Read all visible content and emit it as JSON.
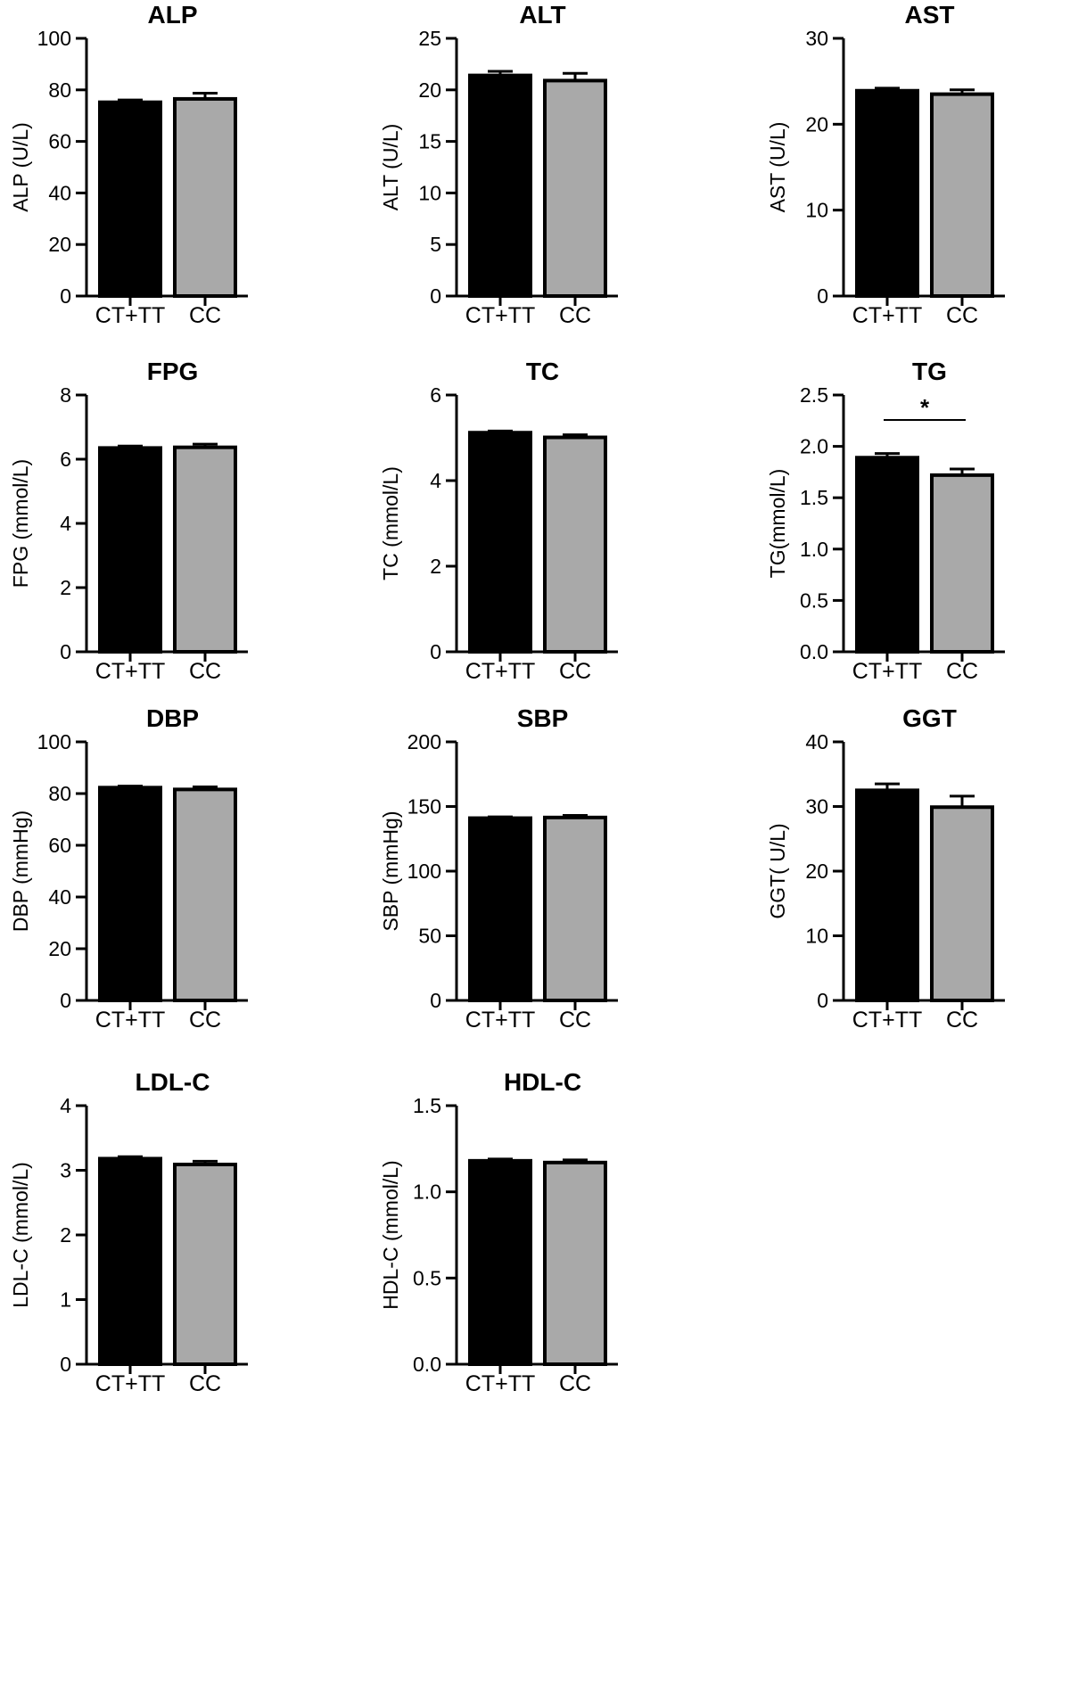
{
  "chart_data": [
    {
      "type": "bar",
      "title": "ALP",
      "ylabel": "ALP (U/L)",
      "categories": [
        "CT+TT",
        "CC"
      ],
      "values": [
        75.2,
        76.5
      ],
      "errors": [
        0.9,
        2.2
      ],
      "ylim": [
        0,
        100
      ],
      "ticks": [
        "0",
        "20",
        "40",
        "60",
        "80",
        "100"
      ],
      "colors": [
        "#000000",
        "#a9a9a9"
      ]
    },
    {
      "type": "bar",
      "title": "ALT",
      "ylabel": "ALT (U/L)",
      "categories": [
        "CT+TT",
        "CC"
      ],
      "values": [
        21.4,
        20.9
      ],
      "errors": [
        0.4,
        0.7
      ],
      "ylim": [
        0,
        25
      ],
      "ticks": [
        "0",
        "5",
        "10",
        "15",
        "20",
        "25"
      ],
      "colors": [
        "#000000",
        "#a9a9a9"
      ]
    },
    {
      "type": "bar",
      "title": "AST",
      "ylabel": "AST (U/L)",
      "categories": [
        "CT+TT",
        "CC"
      ],
      "values": [
        23.9,
        23.5
      ],
      "errors": [
        0.3,
        0.5
      ],
      "ylim": [
        0,
        30
      ],
      "ticks": [
        "0",
        "10",
        "20",
        "30"
      ],
      "colors": [
        "#000000",
        "#a9a9a9"
      ]
    },
    {
      "type": "bar",
      "title": "FPG",
      "ylabel": "FPG (mmol/L)",
      "categories": [
        "CT+TT",
        "CC"
      ],
      "values": [
        6.35,
        6.37
      ],
      "errors": [
        0.06,
        0.1
      ],
      "ylim": [
        0,
        8
      ],
      "ticks": [
        "0",
        "2",
        "4",
        "6",
        "8"
      ],
      "colors": [
        "#000000",
        "#a9a9a9"
      ]
    },
    {
      "type": "bar",
      "title": "TC",
      "ylabel": "TC (mmol/L)",
      "categories": [
        "CT+TT",
        "CC"
      ],
      "values": [
        5.12,
        5.01
      ],
      "errors": [
        0.04,
        0.06
      ],
      "ylim": [
        0,
        6
      ],
      "ticks": [
        "0",
        "2",
        "4",
        "6"
      ],
      "colors": [
        "#000000",
        "#a9a9a9"
      ]
    },
    {
      "type": "bar",
      "title": "TG",
      "ylabel": "TG(mmol/L)",
      "categories": [
        "CT+TT",
        "CC"
      ],
      "values": [
        1.89,
        1.72
      ],
      "errors": [
        0.04,
        0.06
      ],
      "ylim": [
        0,
        2.5
      ],
      "ticks": [
        "0.0",
        "0.5",
        "1.0",
        "1.5",
        "2.0",
        "2.5"
      ],
      "colors": [
        "#000000",
        "#a9a9a9"
      ],
      "significance": "*"
    },
    {
      "type": "bar",
      "title": "DBP",
      "ylabel": "DBP (mmHg)",
      "categories": [
        "CT+TT",
        "CC"
      ],
      "values": [
        82.3,
        81.6
      ],
      "errors": [
        0.6,
        1.0
      ],
      "ylim": [
        0,
        100
      ],
      "ticks": [
        "0",
        "20",
        "40",
        "60",
        "80",
        "100"
      ],
      "colors": [
        "#000000",
        "#a9a9a9"
      ]
    },
    {
      "type": "bar",
      "title": "SBP",
      "ylabel": "SBP (mmHg)",
      "categories": [
        "CT+TT",
        "CC"
      ],
      "values": [
        141,
        141.5
      ],
      "errors": [
        1.0,
        1.6
      ],
      "ylim": [
        0,
        200
      ],
      "ticks": [
        "0",
        "50",
        "100",
        "150",
        "200"
      ],
      "colors": [
        "#000000",
        "#a9a9a9"
      ]
    },
    {
      "type": "bar",
      "title": "GGT",
      "ylabel": "GGT( U/L)",
      "categories": [
        "CT+TT",
        "CC"
      ],
      "values": [
        32.5,
        29.9
      ],
      "errors": [
        1.0,
        1.7
      ],
      "ylim": [
        0,
        40
      ],
      "ticks": [
        "0",
        "10",
        "20",
        "30",
        "40"
      ],
      "colors": [
        "#000000",
        "#a9a9a9"
      ]
    },
    {
      "type": "bar",
      "title": "LDL-C",
      "ylabel": "LDL-C (mmol/L)",
      "categories": [
        "CT+TT",
        "CC"
      ],
      "values": [
        3.18,
        3.09
      ],
      "errors": [
        0.03,
        0.05
      ],
      "ylim": [
        0,
        4
      ],
      "ticks": [
        "0",
        "1",
        "2",
        "3",
        "4"
      ],
      "colors": [
        "#000000",
        "#a9a9a9"
      ]
    },
    {
      "type": "bar",
      "title": "HDL-C",
      "ylabel": "HDL-C (mmol/L)",
      "categories": [
        "CT+TT",
        "CC"
      ],
      "values": [
        1.18,
        1.17
      ],
      "errors": [
        0.01,
        0.015
      ],
      "ylim": [
        0,
        1.5
      ],
      "ticks": [
        "0.0",
        "0.5",
        "1.0",
        "1.5"
      ],
      "colors": [
        "#000000",
        "#a9a9a9"
      ]
    }
  ]
}
